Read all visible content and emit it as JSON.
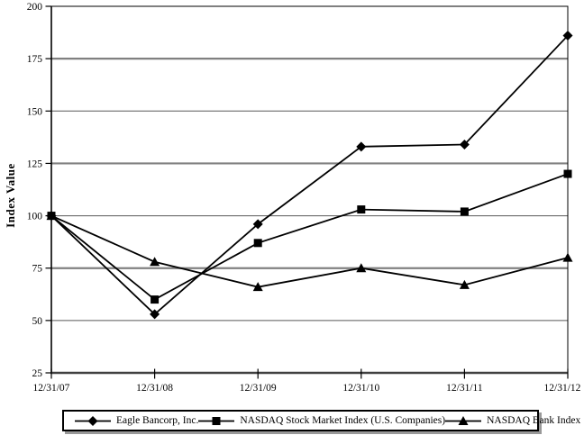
{
  "chart_data": {
    "type": "line",
    "title": "",
    "ylabel": "Index Value",
    "xlabel": "",
    "categories": [
      "12/31/07",
      "12/31/08",
      "12/31/09",
      "12/31/10",
      "12/31/11",
      "12/31/12"
    ],
    "y_ticks": [
      200,
      175,
      150,
      125,
      100,
      75,
      50,
      25
    ],
    "ylim": [
      25,
      200
    ],
    "grid": "horizontal",
    "legend_position": "bottom",
    "series": [
      {
        "name": "Eagle Bancorp, Inc.",
        "marker": "diamond",
        "values": [
          100,
          53,
          96,
          133,
          134,
          186
        ]
      },
      {
        "name": "NASDAQ Stock Market Index (U.S. Companies)",
        "marker": "square",
        "values": [
          100,
          60,
          87,
          103,
          102,
          120
        ]
      },
      {
        "name": "NASDAQ Bank Index",
        "marker": "triangle",
        "values": [
          100,
          78,
          66,
          75,
          67,
          80
        ]
      }
    ],
    "colors": {
      "line": "#000000",
      "marker": "#000000",
      "grid_major": "#808080",
      "grid_minor": "#595959",
      "axis": "#000000",
      "legend_border": "#000000",
      "legend_shadow": "#999999",
      "background": "#ffffff"
    }
  }
}
